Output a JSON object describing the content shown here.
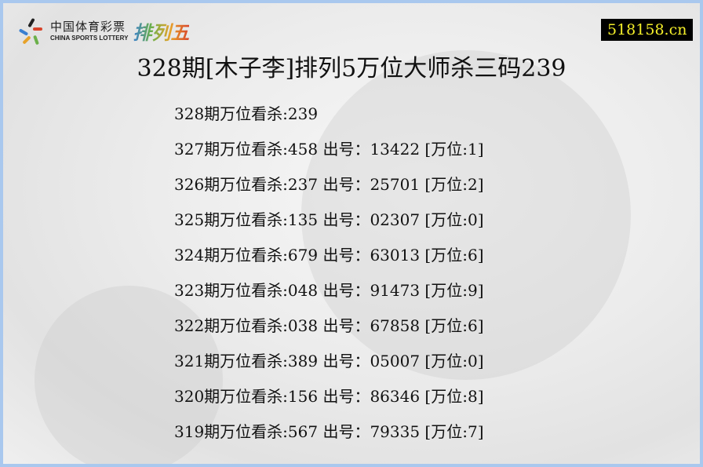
{
  "logo": {
    "cn": "中国体育彩票",
    "en": "CHINA SPORTS LOTTERY",
    "product": "排列五"
  },
  "site": "518158.cn",
  "title": "328期[木子李]排列5万位大师杀三码239",
  "rows": [
    "328期万位看杀:239",
    "327期万位看杀:458 出号：13422 [万位:1]",
    "326期万位看杀:237 出号：25701 [万位:2]",
    "325期万位看杀:135 出号：02307 [万位:0]",
    "324期万位看杀:679 出号：63013 [万位:6]",
    "323期万位看杀:048 出号：91473 [万位:9]",
    "322期万位看杀:038 出号：67858 [万位:6]",
    "321期万位看杀:389 出号：05007 [万位:0]",
    "320期万位看杀:156 出号：86346 [万位:8]",
    "319期万位看杀:567 出号：79335 [万位:7]"
  ]
}
